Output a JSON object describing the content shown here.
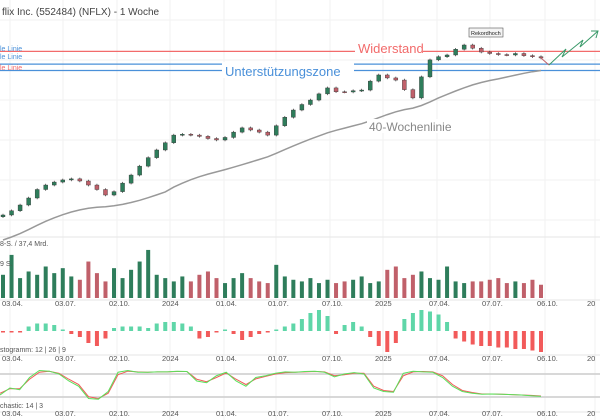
{
  "header": {
    "title": "flix Inc. (552484) (NFLX) - 1 Woche"
  },
  "colors": {
    "up": "#2e7d5b",
    "down": "#c0606a",
    "resistance": "#f26b6b",
    "support": "#4a90d9",
    "ma": "#999999",
    "macd_pos": "#5fd6a8",
    "macd_neg": "#f25a5a",
    "stoch_k": "#5ae05a",
    "stoch_d": "#f25a5a"
  },
  "annotations": {
    "left_lines": [
      "le Linie",
      "le Linie",
      "le Linie"
    ],
    "resistance": "Widerstand",
    "support_zone": "Unterstützungszone",
    "ma_label": "40-Wochenlinie",
    "record": "Rekordhoch"
  },
  "volume_panel": {
    "label_top": "8-S. / 37,4 Mrd.",
    "label_mid": "9 S."
  },
  "macd_panel": {
    "label": "stogramm: 12 | 26 | 9"
  },
  "stoch_panel": {
    "label": "chastic: 14 | 3"
  },
  "x_ticks": [
    "03.04.",
    "03.07.",
    "02.10.",
    "2024",
    "01.04.",
    "01.07.",
    "07.10.",
    "2025",
    "07.04.",
    "07.07.",
    "06.10.",
    "20"
  ],
  "chart_data": {
    "type": "candlestick",
    "interval": "1 Woche",
    "closes": [
      300,
      320,
      347,
      380,
      420,
      441,
      455,
      465,
      470,
      460,
      441,
      420,
      394,
      410,
      450,
      488,
      530,
      570,
      606,
      640,
      676,
      680,
      676,
      670,
      660,
      653,
      665,
      690,
      710,
      700,
      690,
      676,
      720,
      760,
      794,
      820,
      841,
      870,
      898,
      880,
      879,
      885,
      888,
      930,
      959,
      945,
      935,
      890,
      851,
      950,
      1030,
      1045,
      1053,
      1080,
      1100,
      1085,
      1067,
      1060,
      1055,
      1053,
      1060,
      1050,
      1045,
      1039
    ],
    "volume": [
      14,
      26,
      12,
      16,
      14,
      19,
      15,
      18,
      13,
      11,
      22,
      15,
      10,
      18,
      12,
      17,
      22,
      29,
      14,
      12,
      10,
      13,
      10,
      14,
      16,
      12,
      9,
      12,
      15,
      12,
      10,
      9,
      20,
      13,
      11,
      10,
      12,
      9,
      11,
      9,
      10,
      11,
      13,
      9,
      10,
      17,
      19,
      12,
      14,
      16,
      12,
      11,
      19,
      10,
      9,
      10,
      10,
      11,
      12,
      9,
      10,
      9,
      11,
      8
    ],
    "macd": [
      -1,
      -1,
      -1,
      3,
      5,
      5,
      4,
      1,
      -2,
      -4,
      -8,
      -10,
      -5,
      2,
      3,
      3,
      3,
      2,
      5,
      6,
      6,
      5,
      3,
      -5,
      -4,
      -1,
      1,
      -2,
      -6,
      -4,
      -2,
      -1,
      1,
      3,
      5,
      8,
      12,
      14,
      10,
      -2,
      4,
      6,
      3,
      -4,
      -10,
      -14,
      -8,
      8,
      12,
      14,
      13,
      11,
      6,
      -5,
      -7,
      -9,
      -10,
      -10,
      -11,
      -11,
      -12,
      -12,
      -13,
      -14
    ],
    "stoch_k": [
      20,
      40,
      35,
      70,
      90,
      88,
      80,
      60,
      45,
      10,
      8,
      30,
      85,
      90,
      85,
      85,
      86,
      86,
      88,
      87,
      60,
      55,
      75,
      85,
      60,
      45,
      70,
      75,
      82,
      86,
      85,
      87,
      88,
      85,
      72,
      80,
      84,
      80,
      40,
      30,
      28,
      82,
      88,
      86,
      85,
      70,
      45,
      30,
      25,
      22,
      23,
      22,
      21,
      20,
      18,
      16
    ],
    "stoch_d": [
      25,
      38,
      38,
      65,
      85,
      88,
      82,
      65,
      50,
      15,
      10,
      25,
      78,
      88,
      86,
      85,
      86,
      86,
      87,
      87,
      65,
      58,
      70,
      83,
      65,
      50,
      66,
      73,
      80,
      84,
      85,
      86,
      87,
      86,
      75,
      78,
      82,
      82,
      45,
      33,
      30,
      75,
      86,
      87,
      86,
      75,
      50,
      33,
      27,
      23,
      23,
      22,
      21,
      20,
      19,
      17
    ],
    "levels": {
      "resistance": 1070,
      "support_upper": 1010,
      "support_lower": 980
    },
    "ma_period_weeks": 40
  }
}
